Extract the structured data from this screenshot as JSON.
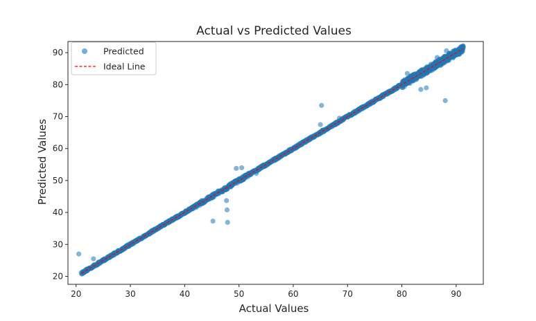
{
  "chart_data": {
    "type": "scatter",
    "title": "Actual vs Predicted Values",
    "xlabel": "Actual Values",
    "ylabel": "Predicted Values",
    "xlim": [
      18.5,
      95
    ],
    "ylim": [
      17.5,
      93.5
    ],
    "xticks": [
      20,
      30,
      40,
      50,
      60,
      70,
      80,
      90
    ],
    "yticks": [
      20,
      30,
      40,
      50,
      60,
      70,
      80,
      90
    ],
    "grid": false,
    "legend_position": "top-left",
    "colors": {
      "predicted": "#1f77b4",
      "ideal": "#ff0000",
      "axis": "#262626"
    },
    "series": [
      {
        "name": "Predicted",
        "kind": "scatter",
        "dense_band": {
          "x_from": 21,
          "x_to": 91.3,
          "relation": "y ≈ x"
        },
        "outliers": [
          {
            "x": 20.5,
            "y": 27
          },
          {
            "x": 23.2,
            "y": 25.5
          },
          {
            "x": 37.5,
            "y": 37.5
          },
          {
            "x": 45.2,
            "y": 37.3
          },
          {
            "x": 47.8,
            "y": 40.8
          },
          {
            "x": 47.7,
            "y": 43.7
          },
          {
            "x": 47.9,
            "y": 36.9
          },
          {
            "x": 49.5,
            "y": 53.8
          },
          {
            "x": 50.5,
            "y": 54.0
          },
          {
            "x": 53.2,
            "y": 52.2
          },
          {
            "x": 65.2,
            "y": 73.5
          },
          {
            "x": 65.0,
            "y": 67.5
          },
          {
            "x": 68.5,
            "y": 69.5
          },
          {
            "x": 83.5,
            "y": 78.5
          },
          {
            "x": 84.5,
            "y": 79.0
          },
          {
            "x": 88.0,
            "y": 75.0
          },
          {
            "x": 81.0,
            "y": 83.5
          },
          {
            "x": 86.5,
            "y": 88.5
          },
          {
            "x": 88.2,
            "y": 90.6
          }
        ]
      },
      {
        "name": "Ideal Line",
        "kind": "line",
        "style": "dashed",
        "points": [
          {
            "x": 21,
            "y": 21
          },
          {
            "x": 91.3,
            "y": 91.3
          }
        ]
      }
    ]
  }
}
